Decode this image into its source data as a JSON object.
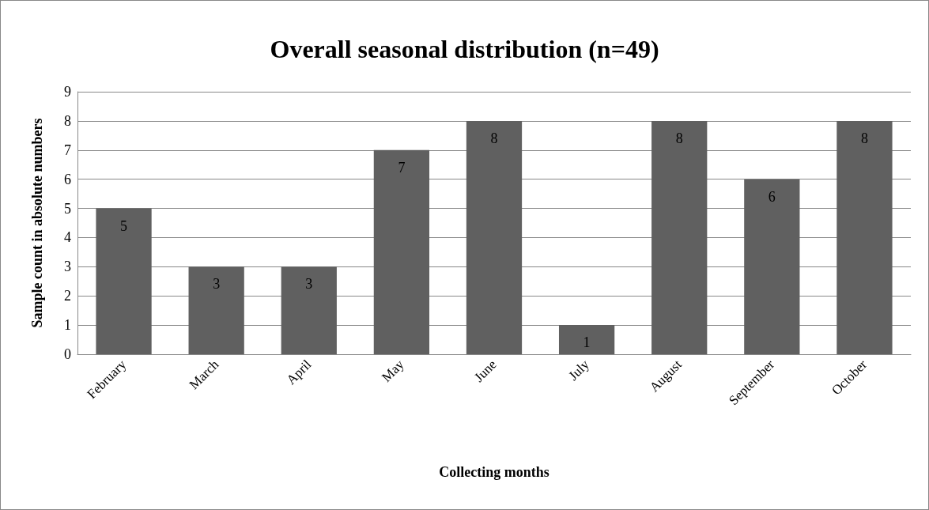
{
  "chart_data": {
    "type": "bar",
    "title": "Overall seasonal distribution (n=49)",
    "xlabel": "Collecting months",
    "ylabel": "Sample count in absolute numbers",
    "categories": [
      "February",
      "March",
      "April",
      "May",
      "June",
      "July",
      "August",
      "September",
      "October"
    ],
    "values": [
      5,
      3,
      3,
      7,
      8,
      1,
      8,
      6,
      8
    ],
    "color": "#606060",
    "ylim": [
      0,
      9
    ],
    "yticks": [
      0,
      1,
      2,
      3,
      4,
      5,
      6,
      7,
      8,
      9
    ],
    "grid": "y",
    "data_labels": true
  }
}
